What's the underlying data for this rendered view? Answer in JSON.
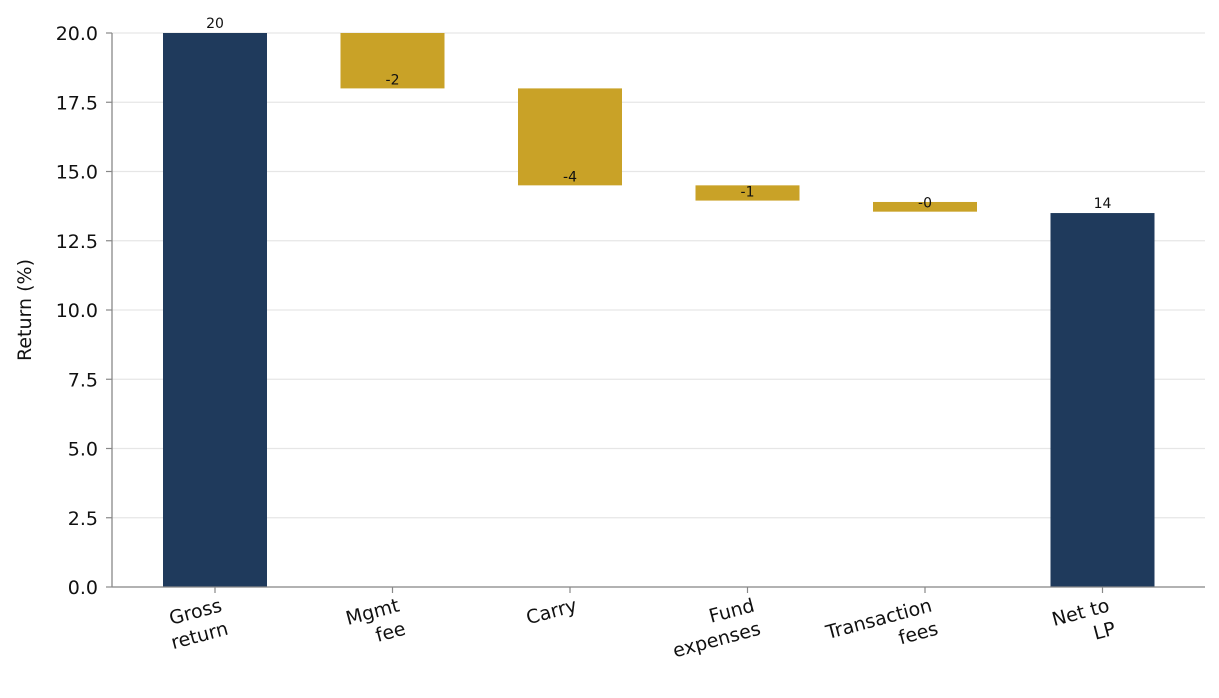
{
  "chart_data": {
    "type": "bar",
    "subtype": "waterfall",
    "title": "",
    "xlabel": "",
    "ylabel": "Return (%)",
    "ylim": [
      0,
      20
    ],
    "yticks": [
      "0.0",
      "2.5",
      "5.0",
      "7.5",
      "10.0",
      "12.5",
      "15.0",
      "17.5",
      "20.0"
    ],
    "grid": true,
    "legend": "none",
    "colors": {
      "total": "#1f3a5c",
      "delta": "#c9a227"
    },
    "categories": [
      {
        "lines": [
          "Gross",
          "return"
        ],
        "kind": "total",
        "start": 0,
        "end": 20,
        "label": "20"
      },
      {
        "lines": [
          "Mgmt",
          "fee"
        ],
        "kind": "delta",
        "start": 20,
        "end": 18,
        "label": "-2"
      },
      {
        "lines": [
          "Carry"
        ],
        "kind": "delta",
        "start": 18,
        "end": 14.5,
        "label": "-4"
      },
      {
        "lines": [
          "Fund",
          "expenses"
        ],
        "kind": "delta",
        "start": 14.5,
        "end": 13.95,
        "label": "-1"
      },
      {
        "lines": [
          "Transaction",
          "fees"
        ],
        "kind": "delta",
        "start": 13.9,
        "end": 13.55,
        "label": "-0"
      },
      {
        "lines": [
          "Net to",
          "LP"
        ],
        "kind": "total",
        "start": 0,
        "end": 13.5,
        "label": "14"
      }
    ]
  }
}
